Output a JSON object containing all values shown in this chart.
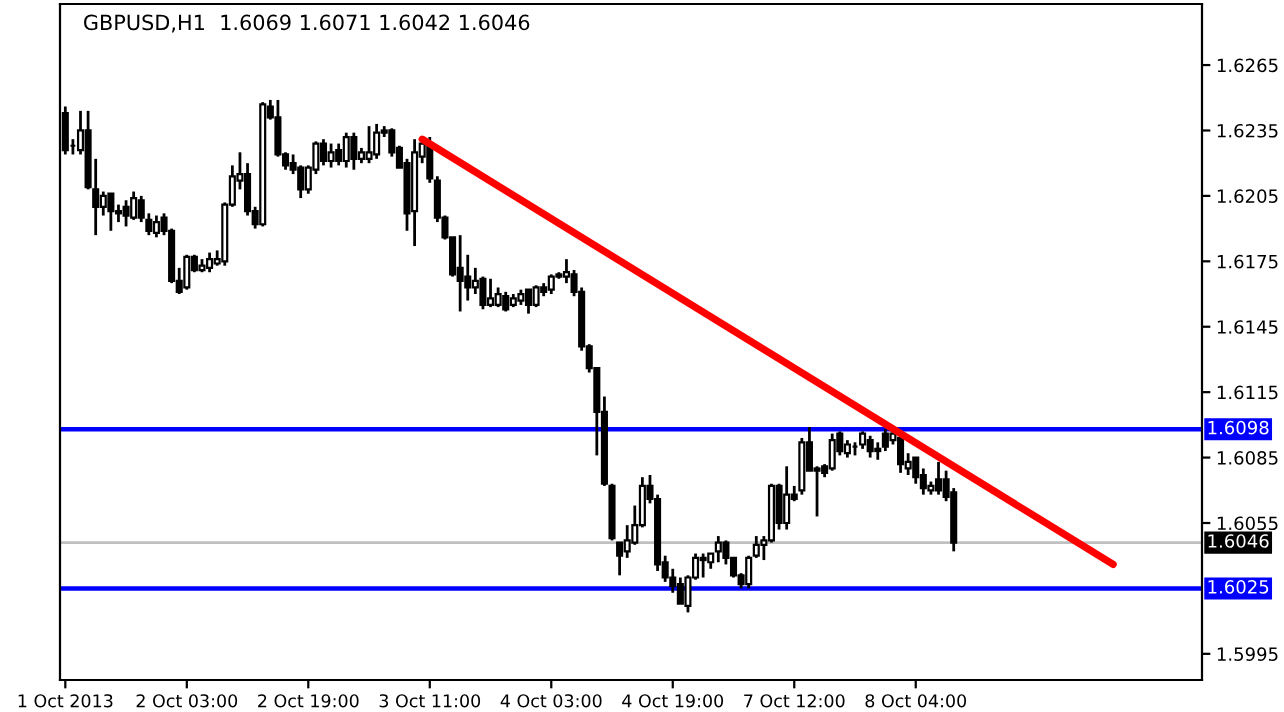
{
  "chart_data": {
    "type": "candlestick",
    "title": "GBPUSD,H1  1.6069 1.6071 1.6042 1.6046",
    "categories": [
      "1 Oct 2013",
      null,
      null,
      null,
      null,
      null,
      null,
      null,
      null,
      null,
      null,
      null,
      null,
      null,
      null,
      null,
      "2 Oct 03:00",
      null,
      null,
      null,
      null,
      null,
      null,
      null,
      null,
      null,
      null,
      null,
      null,
      null,
      null,
      null,
      "2 Oct 19:00",
      null,
      null,
      null,
      null,
      null,
      null,
      null,
      null,
      null,
      null,
      null,
      null,
      null,
      null,
      null,
      "3 Oct 11:00",
      null,
      null,
      null,
      null,
      null,
      null,
      null,
      null,
      null,
      null,
      null,
      null,
      null,
      null,
      null,
      "4 Oct 03:00",
      null,
      null,
      null,
      null,
      null,
      null,
      null,
      null,
      null,
      null,
      null,
      null,
      null,
      null,
      null,
      "4 Oct 19:00",
      null,
      null,
      null,
      null,
      null,
      null,
      null,
      null,
      null,
      null,
      null,
      null,
      null,
      null,
      null,
      "7 Oct 12:00",
      null,
      null,
      null,
      null,
      null,
      null,
      null,
      null,
      null,
      null,
      null,
      null,
      null,
      null,
      null,
      "8 Oct 04:00",
      null,
      null,
      null,
      null,
      null,
      null,
      null,
      null,
      null,
      null,
      null,
      null,
      null,
      null,
      null,
      null,
      null,
      null,
      null,
      null,
      null,
      null,
      null,
      null,
      null,
      null,
      null,
      null,
      null,
      null,
      null,
      null,
      null,
      null,
      null,
      null,
      null
    ],
    "ohlc": [
      [
        1.6243,
        1.6246,
        1.6224,
        1.6226
      ],
      [
        1.6228,
        1.6231,
        1.6224,
        1.6228
      ],
      [
        1.6226,
        1.6244,
        1.6224,
        1.6235
      ],
      [
        1.6235,
        1.6244,
        1.6208,
        1.6209
      ],
      [
        1.6208,
        1.6222,
        1.6187,
        1.62
      ],
      [
        1.62,
        1.6207,
        1.6196,
        1.6205
      ],
      [
        1.6206,
        1.6206,
        1.6189,
        1.6198
      ],
      [
        1.6198,
        1.6201,
        1.6193,
        1.6197
      ],
      [
        1.62,
        1.6203,
        1.6191,
        1.6196
      ],
      [
        1.6195,
        1.6207,
        1.6194,
        1.6204
      ],
      [
        1.6203,
        1.6205,
        1.6193,
        1.6195
      ],
      [
        1.6194,
        1.6197,
        1.6187,
        1.6189
      ],
      [
        1.6188,
        1.6196,
        1.6186,
        1.6193
      ],
      [
        1.6195,
        1.6197,
        1.6187,
        1.6189
      ],
      [
        1.6189,
        1.619,
        1.6165,
        1.6166
      ],
      [
        1.6166,
        1.6172,
        1.616,
        1.6161
      ],
      [
        1.6163,
        1.6178,
        1.6162,
        1.6177
      ],
      [
        1.6177,
        1.6178,
        1.617,
        1.6171
      ],
      [
        1.6171,
        1.6176,
        1.617,
        1.6173
      ],
      [
        1.6172,
        1.6179,
        1.617,
        1.6176
      ],
      [
        1.6174,
        1.618,
        1.6173,
        1.6176
      ],
      [
        1.6175,
        1.6202,
        1.6173,
        1.6201
      ],
      [
        1.6201,
        1.6219,
        1.62,
        1.6214
      ],
      [
        1.6212,
        1.6225,
        1.6208,
        1.6215
      ],
      [
        1.6215,
        1.622,
        1.6196,
        1.6198
      ],
      [
        1.6198,
        1.62,
        1.619,
        1.6192
      ],
      [
        1.6192,
        1.6248,
        1.6191,
        1.6247
      ],
      [
        1.6246,
        1.6249,
        1.624,
        1.6241
      ],
      [
        1.6241,
        1.6249,
        1.6223,
        1.6224
      ],
      [
        1.6224,
        1.6225,
        1.6217,
        1.6219
      ],
      [
        1.622,
        1.6224,
        1.6215,
        1.6217
      ],
      [
        1.6218,
        1.6219,
        1.6204,
        1.6208
      ],
      [
        1.6208,
        1.6219,
        1.6206,
        1.6218
      ],
      [
        1.6217,
        1.623,
        1.6215,
        1.6229
      ],
      [
        1.6229,
        1.6231,
        1.6219,
        1.6221
      ],
      [
        1.6221,
        1.6229,
        1.6218,
        1.6225
      ],
      [
        1.6226,
        1.6229,
        1.6219,
        1.6221
      ],
      [
        1.6221,
        1.6234,
        1.6218,
        1.6232
      ],
      [
        1.6232,
        1.6234,
        1.6217,
        1.6222
      ],
      [
        1.6222,
        1.6227,
        1.622,
        1.6225
      ],
      [
        1.6222,
        1.6237,
        1.622,
        1.6225
      ],
      [
        1.6224,
        1.6238,
        1.6222,
        1.6234
      ],
      [
        1.6235,
        1.6237,
        1.6232,
        1.6234
      ],
      [
        1.6235,
        1.6236,
        1.6223,
        1.6225
      ],
      [
        1.6227,
        1.6228,
        1.6218,
        1.6218
      ],
      [
        1.622,
        1.6222,
        1.6189,
        1.6197
      ],
      [
        1.6198,
        1.6231,
        1.6182,
        1.6225
      ],
      [
        1.6223,
        1.6232,
        1.622,
        1.6229
      ],
      [
        1.6229,
        1.6232,
        1.6211,
        1.6213
      ],
      [
        1.6212,
        1.6214,
        1.6193,
        1.6195
      ],
      [
        1.6195,
        1.6196,
        1.6185,
        1.6186
      ],
      [
        1.6186,
        1.6186,
        1.6168,
        1.6169
      ],
      [
        1.6172,
        1.6187,
        1.6152,
        1.6166
      ],
      [
        1.6168,
        1.6178,
        1.6157,
        1.6163
      ],
      [
        1.6163,
        1.6172,
        1.616,
        1.6166
      ],
      [
        1.6167,
        1.6168,
        1.6153,
        1.6155
      ],
      [
        1.6155,
        1.6167,
        1.6154,
        1.6158
      ],
      [
        1.6155,
        1.6163,
        1.6154,
        1.616
      ],
      [
        1.6159,
        1.6161,
        1.6152,
        1.6153
      ],
      [
        1.6155,
        1.616,
        1.6154,
        1.6158
      ],
      [
        1.6157,
        1.6162,
        1.6155,
        1.616
      ],
      [
        1.6162,
        1.6162,
        1.6151,
        1.6155
      ],
      [
        1.6155,
        1.6164,
        1.6154,
        1.6163
      ],
      [
        1.6163,
        1.6165,
        1.6159,
        1.6161
      ],
      [
        1.6162,
        1.6169,
        1.616,
        1.6168
      ],
      [
        1.6169,
        1.617,
        1.6167,
        1.6168
      ],
      [
        1.6168,
        1.6176,
        1.6165,
        1.617
      ],
      [
        1.6169,
        1.6171,
        1.6159,
        1.6161
      ],
      [
        1.6161,
        1.6163,
        1.6134,
        1.6136
      ],
      [
        1.6136,
        1.6137,
        1.6124,
        1.6126
      ],
      [
        1.6126,
        1.6126,
        1.6086,
        1.6106
      ],
      [
        1.6106,
        1.6113,
        1.6072,
        1.6073
      ],
      [
        1.6072,
        1.6073,
        1.6047,
        1.6048
      ],
      [
        1.6046,
        1.6046,
        1.6031,
        1.604
      ],
      [
        1.6042,
        1.6054,
        1.6039,
        1.6047
      ],
      [
        1.6046,
        1.6063,
        1.6045,
        1.6054
      ],
      [
        1.6054,
        1.6076,
        1.6053,
        1.6072
      ],
      [
        1.6072,
        1.6077,
        1.6064,
        1.6066
      ],
      [
        1.6066,
        1.6068,
        1.6033,
        1.6036
      ],
      [
        1.6037,
        1.604,
        1.6028,
        1.603
      ],
      [
        1.603,
        1.6034,
        1.6023,
        1.6026
      ],
      [
        1.6027,
        1.603,
        1.6018,
        1.6018
      ],
      [
        1.6017,
        1.6031,
        1.6014,
        1.603
      ],
      [
        1.603,
        1.6041,
        1.6029,
        1.6039
      ],
      [
        1.6038,
        1.6041,
        1.603,
        1.6039
      ],
      [
        1.6037,
        1.6041,
        1.6034,
        1.6041
      ],
      [
        1.6042,
        1.6049,
        1.6037,
        1.6046
      ],
      [
        1.6046,
        1.6047,
        1.6036,
        1.6039
      ],
      [
        1.6039,
        1.6039,
        1.603,
        1.6031
      ],
      [
        1.6031,
        1.6032,
        1.6025,
        1.6027
      ],
      [
        1.6027,
        1.604,
        1.6025,
        1.6039
      ],
      [
        1.604,
        1.6049,
        1.6039,
        1.6045
      ],
      [
        1.6045,
        1.6049,
        1.6038,
        1.6047
      ],
      [
        1.6047,
        1.6073,
        1.6046,
        1.6072
      ],
      [
        1.6072,
        1.6073,
        1.6052,
        1.6055
      ],
      [
        1.6055,
        1.6081,
        1.6052,
        1.6068
      ],
      [
        1.6068,
        1.6072,
        1.6065,
        1.6066
      ],
      [
        1.607,
        1.6094,
        1.6068,
        1.6092
      ],
      [
        1.6092,
        1.6099,
        1.6079,
        1.6079
      ],
      [
        1.608,
        1.6081,
        1.6058,
        1.6079
      ],
      [
        1.6081,
        1.6082,
        1.6076,
        1.6078
      ],
      [
        1.608,
        1.6096,
        1.6079,
        1.6093
      ],
      [
        1.6096,
        1.6097,
        1.6086,
        1.6088
      ],
      [
        1.6087,
        1.6093,
        1.6085,
        1.6091
      ],
      [
        1.609,
        1.6092,
        1.6086,
        1.609
      ],
      [
        1.6091,
        1.6097,
        1.6089,
        1.6096
      ],
      [
        1.6093,
        1.6095,
        1.6085,
        1.6088
      ],
      [
        1.6089,
        1.6092,
        1.6084,
        1.6088
      ],
      [
        1.6096,
        1.6098,
        1.6088,
        1.609
      ],
      [
        1.6093,
        1.6099,
        1.6091,
        1.6096
      ],
      [
        1.6094,
        1.6096,
        1.6078,
        1.6082
      ],
      [
        1.608,
        1.6087,
        1.6077,
        1.6083
      ],
      [
        1.6085,
        1.6085,
        1.6073,
        1.6076
      ],
      [
        1.6077,
        1.608,
        1.6068,
        1.6071
      ],
      [
        1.607,
        1.6074,
        1.6068,
        1.6072
      ],
      [
        1.6075,
        1.6083,
        1.6068,
        1.607
      ],
      [
        1.6075,
        1.6079,
        1.6065,
        1.6067
      ],
      [
        1.6069,
        1.6071,
        1.6042,
        1.6046
      ],
      null,
      null,
      null,
      null,
      null,
      null,
      null,
      null,
      null,
      null,
      null,
      null,
      null,
      null,
      null,
      null,
      null,
      null,
      null,
      null,
      null,
      null,
      null,
      null,
      null,
      null,
      null,
      null,
      null,
      null,
      null,
      null
    ],
    "series": [
      {
        "type": "line",
        "color": "#ff0000",
        "values": [
          null,
          null,
          null,
          null,
          null,
          null,
          null,
          null,
          null,
          null,
          null,
          null,
          null,
          null,
          null,
          null,
          null,
          null,
          null,
          null,
          null,
          null,
          null,
          null,
          null,
          null,
          null,
          null,
          null,
          null,
          null,
          null,
          null,
          null,
          null,
          null,
          null,
          null,
          null,
          null,
          null,
          null,
          null,
          null,
          null,
          null,
          null,
          1.6231,
          null,
          null,
          null,
          null,
          null,
          null,
          null,
          null,
          null,
          null,
          null,
          null,
          null,
          null,
          null,
          null,
          null,
          null,
          null,
          null,
          null,
          null,
          null,
          null,
          null,
          null,
          null,
          null,
          null,
          null,
          null,
          null,
          null,
          null,
          null,
          null,
          null,
          null,
          null,
          null,
          null,
          null,
          null,
          null,
          null,
          null,
          null,
          null,
          null,
          null,
          null,
          null,
          null,
          null,
          null,
          null,
          null,
          null,
          null,
          null,
          null,
          null,
          null,
          null,
          null,
          null,
          null,
          null,
          null,
          null,
          null,
          null,
          null,
          null,
          null,
          null,
          null,
          null,
          null,
          null,
          null,
          null,
          null,
          null,
          null,
          null,
          null,
          null,
          null,
          null,
          1.6036,
          null,
          null,
          null,
          null,
          null,
          null,
          null,
          null,
          null,
          null,
          null
        ]
      }
    ],
    "ylim": [
      1.5983,
      1.6293
    ],
    "yticks": [
      1.5995,
      1.6055,
      1.6085,
      1.6115,
      1.6145,
      1.6175,
      1.6205,
      1.6235,
      1.6265
    ],
    "ref_lines": [
      {
        "axis": "y",
        "value": 1.6098,
        "label": "1.6098",
        "color": "#0000ff"
      },
      {
        "axis": "y",
        "value": 1.6025,
        "label": "1.6025",
        "color": "#0000ff"
      },
      {
        "axis": "y",
        "value": 1.6046,
        "label": "1.6046",
        "color": "#c0c0c0"
      }
    ],
    "grid": false,
    "legend": false
  }
}
